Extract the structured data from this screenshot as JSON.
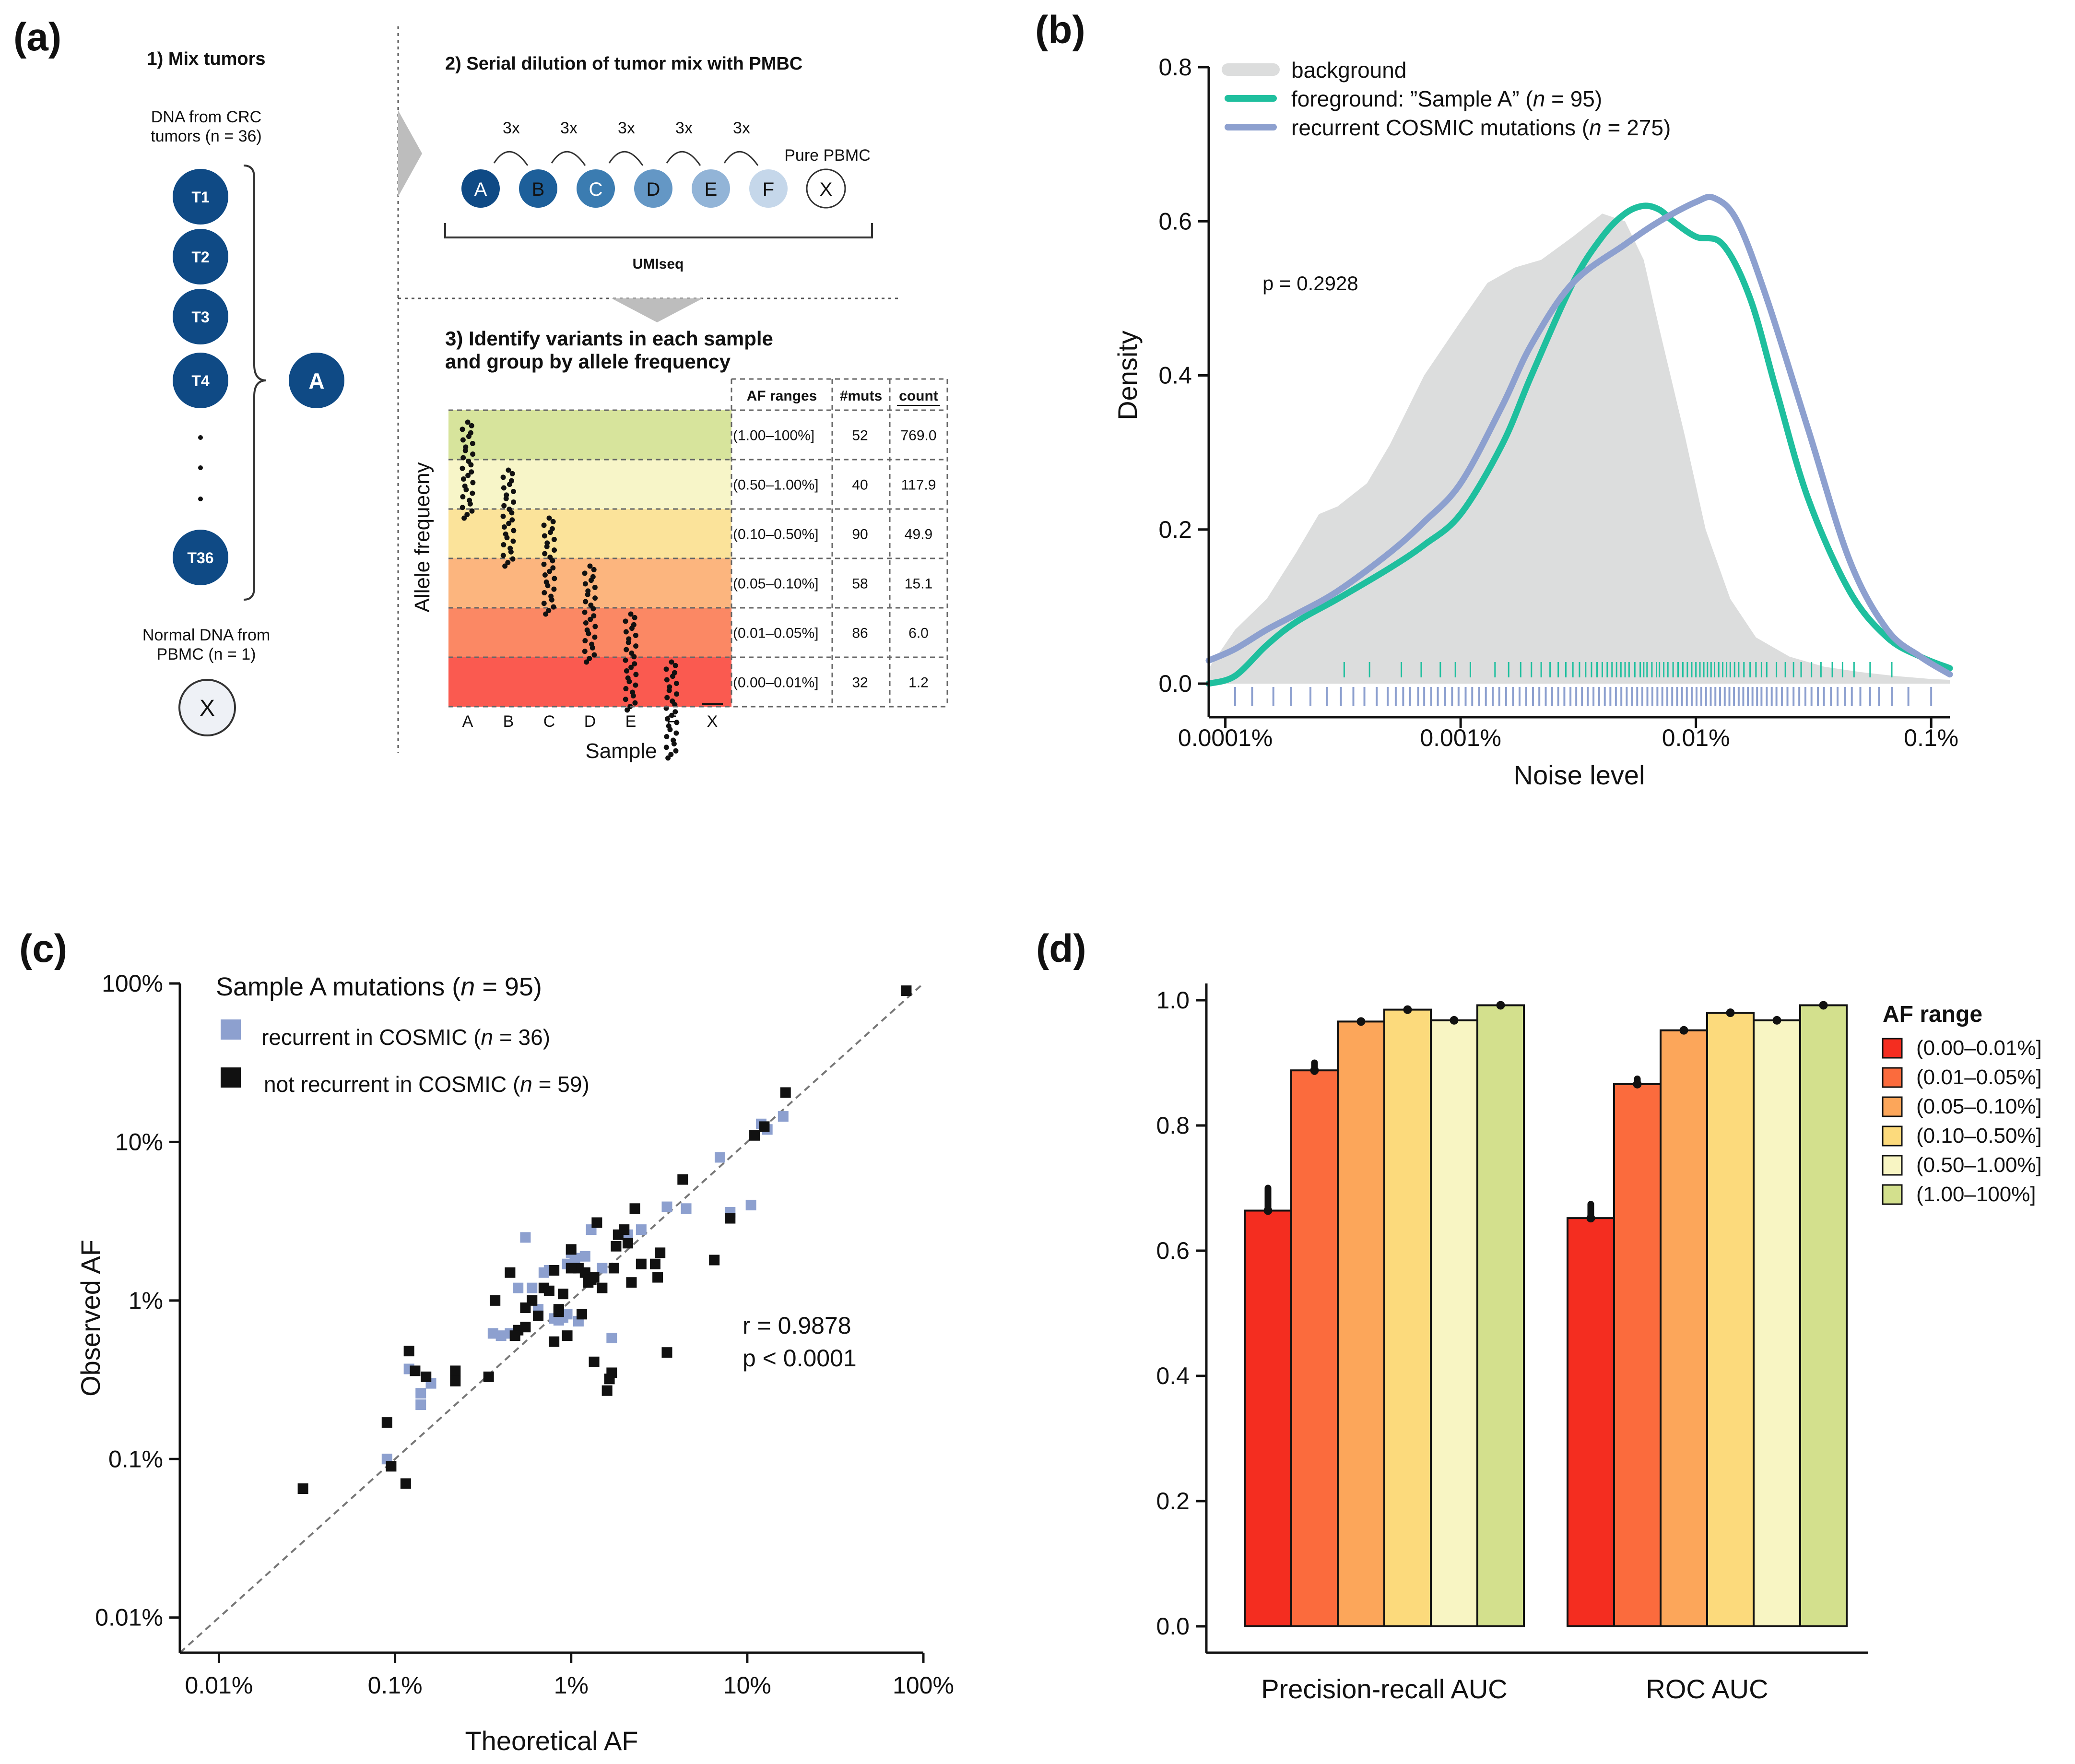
{
  "panel_a": {
    "letter": "(a)",
    "step1_title": "1) Mix tumors",
    "dna_from_line1": "DNA from CRC",
    "dna_from_line2": "tumors (n = 36)",
    "tumors": [
      "T1",
      "T2",
      "T3",
      "T4",
      "T36"
    ],
    "mix_label": "A",
    "normal_line1": "Normal DNA from",
    "normal_line2": "PBMC (n = 1)",
    "normal_label": "X",
    "step2_title": "2) Serial dilution of tumor mix with PMBC",
    "dilution_factors": [
      "3x",
      "3x",
      "3x",
      "3x",
      "3x"
    ],
    "pure_pbmc": "Pure PBMC",
    "samples": [
      "A",
      "B",
      "C",
      "D",
      "E",
      "F",
      "X"
    ],
    "umiseq_label": "UMIseq",
    "step3_title_line1": "3) Identify variants in each sample",
    "step3_title_line2": "and group by allele frequency",
    "y_axis_label": "Allele frequecny",
    "x_axis_label": "Sample",
    "table_headers": [
      "AF ranges",
      "#muts",
      "count"
    ],
    "table_rows": [
      {
        "range": "(1.00–100%]",
        "muts": "52",
        "count": "769.0",
        "color": "#d7e49c"
      },
      {
        "range": "(0.50–1.00%]",
        "muts": "40",
        "count": "117.9",
        "color": "#f7f5c8"
      },
      {
        "range": "(0.10–0.50%]",
        "muts": "90",
        "count": "49.9",
        "color": "#fbe39a"
      },
      {
        "range": "(0.05–0.10%]",
        "muts": "58",
        "count": "15.1",
        "color": "#fcb57e"
      },
      {
        "range": "(0.01–0.05%]",
        "muts": "86",
        "count": "6.0",
        "color": "#fb8864"
      },
      {
        "range": "(0.00–0.01%]",
        "muts": "32",
        "count": "1.2",
        "color": "#fa5a50"
      }
    ]
  },
  "panel_b": {
    "letter": "(b)",
    "pvalue": "p = 0.2928",
    "legend": {
      "background": "background",
      "foreground_prefix": "foreground: ”Sample A” (",
      "foreground_n": "n",
      "foreground_suffix": " = 95)",
      "cosmic_prefix": "recurrent COSMIC mutations (",
      "cosmic_n": "n",
      "cosmic_suffix": " = 275)"
    }
  },
  "panel_c": {
    "letter": "(c)",
    "legend_title_prefix": "Sample A mutations (",
    "legend_title_n": "n",
    "legend_title_suffix": " = 95)",
    "legend_blue_prefix": "recurrent in COSMIC (",
    "legend_blue_n": "n",
    "legend_blue_suffix": " = 36)",
    "legend_black_prefix": "not recurrent in COSMIC (",
    "legend_black_n": "n",
    "legend_black_suffix": " = 59)",
    "r_text": "r = 0.9878",
    "p_text": "p < 0.0001"
  },
  "panel_d": {
    "letter": "(d)",
    "legend_title": "AF range"
  },
  "chart_data": [
    {
      "id": "b",
      "type": "line",
      "xlabel": "Noise level",
      "ylabel": "Density",
      "x_scale": "log10",
      "x_ticks": [
        {
          "v": 0.0001,
          "label": "0.0001%"
        },
        {
          "v": 0.001,
          "label": "0.001%"
        },
        {
          "v": 0.01,
          "label": "0.01%"
        },
        {
          "v": 0.1,
          "label": "0.1%"
        }
      ],
      "xlim": [
        8.5e-05,
        0.12
      ],
      "ylim": [
        0,
        0.8
      ],
      "y_ticks": [
        0.0,
        0.2,
        0.4,
        0.6,
        0.8
      ],
      "series": [
        {
          "name": "background",
          "kind": "area",
          "color": "#dcdddd",
          "x": [
            8.5e-05,
            0.00011,
            0.00015,
            0.0002,
            0.00025,
            0.0003,
            0.0004,
            0.0005,
            0.0007,
            0.001,
            0.0013,
            0.0017,
            0.0022,
            0.003,
            0.004,
            0.005,
            0.006,
            0.007,
            0.009,
            0.011,
            0.014,
            0.018,
            0.025,
            0.035,
            0.05,
            0.07,
            0.1,
            0.12
          ],
          "y": [
            0.02,
            0.07,
            0.11,
            0.17,
            0.22,
            0.23,
            0.26,
            0.31,
            0.4,
            0.47,
            0.52,
            0.54,
            0.55,
            0.58,
            0.61,
            0.6,
            0.55,
            0.46,
            0.32,
            0.2,
            0.11,
            0.06,
            0.035,
            0.022,
            0.015,
            0.01,
            0.006,
            0.005
          ]
        },
        {
          "name": "foreground: ”Sample A” (n = 95)",
          "kind": "line",
          "color": "#1fbf9e",
          "x": [
            8.5e-05,
            0.00011,
            0.00015,
            0.0002,
            0.0003,
            0.0005,
            0.0007,
            0.001,
            0.0015,
            0.002,
            0.003,
            0.004,
            0.005,
            0.006,
            0.007,
            0.008,
            0.01,
            0.013,
            0.017,
            0.022,
            0.03,
            0.045,
            0.065,
            0.09,
            0.12
          ],
          "y": [
            0.0,
            0.01,
            0.05,
            0.08,
            0.11,
            0.15,
            0.18,
            0.22,
            0.31,
            0.4,
            0.52,
            0.58,
            0.61,
            0.62,
            0.615,
            0.6,
            0.58,
            0.57,
            0.5,
            0.38,
            0.24,
            0.12,
            0.06,
            0.035,
            0.02
          ]
        },
        {
          "name": "recurrent COSMIC mutations (n = 275)",
          "kind": "line",
          "color": "#8da0cf",
          "x": [
            8.5e-05,
            0.00011,
            0.00015,
            0.0002,
            0.0003,
            0.0005,
            0.0007,
            0.001,
            0.0015,
            0.002,
            0.003,
            0.005,
            0.007,
            0.01,
            0.012,
            0.015,
            0.02,
            0.03,
            0.045,
            0.065,
            0.09,
            0.12
          ],
          "y": [
            0.03,
            0.045,
            0.07,
            0.09,
            0.12,
            0.17,
            0.21,
            0.26,
            0.36,
            0.44,
            0.52,
            0.57,
            0.6,
            0.625,
            0.63,
            0.6,
            0.5,
            0.33,
            0.16,
            0.07,
            0.035,
            0.012
          ]
        }
      ],
      "rug_foreground": [
        0.00032,
        0.00041,
        0.00056,
        0.00068,
        0.00082,
        0.00095,
        0.0011,
        0.0014,
        0.0016,
        0.0018,
        0.002,
        0.0022,
        0.0024,
        0.0026,
        0.0028,
        0.003,
        0.0032,
        0.0034,
        0.0036,
        0.0038,
        0.004,
        0.0042,
        0.0044,
        0.0046,
        0.0048,
        0.005,
        0.0052,
        0.0055,
        0.0058,
        0.006,
        0.0062,
        0.0065,
        0.0068,
        0.007,
        0.0073,
        0.0076,
        0.008,
        0.0084,
        0.0088,
        0.0092,
        0.0096,
        0.01,
        0.0104,
        0.0108,
        0.0112,
        0.0116,
        0.012,
        0.0125,
        0.013,
        0.0135,
        0.014,
        0.0146,
        0.0152,
        0.016,
        0.017,
        0.018,
        0.019,
        0.02,
        0.022,
        0.024,
        0.026,
        0.028,
        0.031,
        0.034,
        0.038,
        0.042,
        0.047,
        0.055,
        0.068
      ],
      "rug_cosmic": [
        0.00011,
        0.00013,
        0.00016,
        0.00019,
        0.00023,
        0.00027,
        0.00031,
        0.00035,
        0.00039,
        0.00044,
        0.00049,
        0.00053,
        0.00057,
        0.00061,
        0.00066,
        0.0007,
        0.00075,
        0.0008,
        0.00086,
        0.00092,
        0.00098,
        0.00105,
        0.00112,
        0.0012,
        0.00128,
        0.00137,
        0.00146,
        0.00156,
        0.00167,
        0.00178,
        0.0019,
        0.00203,
        0.00216,
        0.0023,
        0.00245,
        0.0026,
        0.00276,
        0.00293,
        0.0031,
        0.00328,
        0.00347,
        0.00367,
        0.00388,
        0.0041,
        0.00433,
        0.00457,
        0.00482,
        0.00508,
        0.00535,
        0.00563,
        0.00592,
        0.00622,
        0.00653,
        0.00686,
        0.0072,
        0.00756,
        0.00793,
        0.00832,
        0.00873,
        0.00915,
        0.0096,
        0.01006,
        0.01054,
        0.01104,
        0.01156,
        0.0121,
        0.01267,
        0.01326,
        0.01388,
        0.01452,
        0.0152,
        0.0159,
        0.01664,
        0.0174,
        0.0182,
        0.019,
        0.02,
        0.021,
        0.022,
        0.0232,
        0.0245,
        0.026,
        0.0275,
        0.0292,
        0.031,
        0.033,
        0.035,
        0.0375,
        0.04,
        0.043,
        0.046,
        0.05,
        0.055,
        0.06,
        0.068,
        0.08,
        0.1
      ]
    },
    {
      "id": "c",
      "type": "scatter",
      "xlabel": "Theoretical AF",
      "ylabel": "Observed AF",
      "x_scale": "log10",
      "y_scale": "log10",
      "xlim": [
        0.006,
        100
      ],
      "ylim": [
        0.006,
        100
      ],
      "x_ticks": [
        {
          "v": 0.01,
          "label": "0.01%"
        },
        {
          "v": 0.1,
          "label": "0.1%"
        },
        {
          "v": 1,
          "label": "1%"
        },
        {
          "v": 10,
          "label": "10%"
        },
        {
          "v": 100,
          "label": "100%"
        }
      ],
      "y_ticks": [
        {
          "v": 0.01,
          "label": "0.01%"
        },
        {
          "v": 0.1,
          "label": "0.1%"
        },
        {
          "v": 1,
          "label": "1%"
        },
        {
          "v": 10,
          "label": "10%"
        },
        {
          "v": 100,
          "label": "100%"
        }
      ],
      "series": [
        {
          "name": "recurrent in COSMIC",
          "color": "#8da0cf",
          "points": [
            [
              0.09,
              0.1
            ],
            [
              0.12,
              0.37
            ],
            [
              0.14,
              0.22
            ],
            [
              0.14,
              0.26
            ],
            [
              0.16,
              0.3
            ],
            [
              0.36,
              0.62
            ],
            [
              0.4,
              0.6
            ],
            [
              0.45,
              0.62
            ],
            [
              0.5,
              1.2
            ],
            [
              0.55,
              2.5
            ],
            [
              0.6,
              1.2
            ],
            [
              0.65,
              0.88
            ],
            [
              0.7,
              1.5
            ],
            [
              0.75,
              1.55
            ],
            [
              0.8,
              0.77
            ],
            [
              0.85,
              0.75
            ],
            [
              0.9,
              0.78
            ],
            [
              0.95,
              1.7
            ],
            [
              1.0,
              2.0
            ],
            [
              1.05,
              1.85
            ],
            [
              1.1,
              0.74
            ],
            [
              1.2,
              1.9
            ],
            [
              1.3,
              2.8
            ],
            [
              1.5,
              1.6
            ],
            [
              1.7,
              0.58
            ],
            [
              2.1,
              2.6
            ],
            [
              2.5,
              2.8
            ],
            [
              3.5,
              3.9
            ],
            [
              4.5,
              3.8
            ],
            [
              7.0,
              8.0
            ],
            [
              8.0,
              3.6
            ],
            [
              10.5,
              4.0
            ],
            [
              12.0,
              13.0
            ],
            [
              16.0,
              14.5
            ],
            [
              13.0,
              12.0
            ],
            [
              0.95,
              0.82
            ]
          ]
        },
        {
          "name": "not recurrent in COSMIC",
          "color": "#111111",
          "points": [
            [
              0.03,
              0.065
            ],
            [
              0.09,
              0.17
            ],
            [
              0.095,
              0.09
            ],
            [
              0.115,
              0.07
            ],
            [
              0.12,
              0.48
            ],
            [
              0.13,
              0.36
            ],
            [
              0.15,
              0.33
            ],
            [
              0.22,
              0.36
            ],
            [
              0.22,
              0.31
            ],
            [
              0.34,
              0.33
            ],
            [
              0.37,
              1.0
            ],
            [
              0.45,
              1.5
            ],
            [
              0.5,
              0.65
            ],
            [
              0.55,
              0.68
            ],
            [
              0.6,
              1.0
            ],
            [
              0.65,
              0.8
            ],
            [
              0.7,
              1.2
            ],
            [
              0.75,
              1.15
            ],
            [
              0.8,
              0.55
            ],
            [
              0.85,
              0.85
            ],
            [
              0.85,
              0.88
            ],
            [
              0.95,
              0.6
            ],
            [
              1.0,
              2.1
            ],
            [
              1.1,
              1.6
            ],
            [
              1.2,
              1.5
            ],
            [
              1.25,
              1.3
            ],
            [
              1.3,
              1.35
            ],
            [
              1.35,
              1.4
            ],
            [
              1.35,
              0.41
            ],
            [
              1.4,
              3.1
            ],
            [
              1.5,
              1.2
            ],
            [
              1.6,
              0.27
            ],
            [
              1.65,
              0.32
            ],
            [
              1.7,
              0.35
            ],
            [
              1.75,
              1.6
            ],
            [
              1.8,
              2.2
            ],
            [
              1.85,
              2.6
            ],
            [
              2.0,
              2.8
            ],
            [
              2.2,
              1.3
            ],
            [
              2.3,
              3.8
            ],
            [
              2.5,
              1.7
            ],
            [
              3.0,
              1.7
            ],
            [
              3.1,
              1.4
            ],
            [
              3.2,
              2.0
            ],
            [
              3.5,
              0.47
            ],
            [
              4.3,
              5.8
            ],
            [
              6.5,
              1.8
            ],
            [
              8.0,
              3.3
            ],
            [
              11.0,
              11.0
            ],
            [
              12.5,
              12.5
            ],
            [
              16.5,
              20.5
            ],
            [
              80.0,
              90.0
            ],
            [
              0.8,
              1.55
            ],
            [
              0.55,
              0.9
            ],
            [
              1.15,
              0.82
            ],
            [
              2.1,
              2.3
            ],
            [
              0.48,
              0.6
            ],
            [
              0.9,
              1.1
            ],
            [
              1.0,
              1.6
            ]
          ]
        }
      ]
    },
    {
      "id": "d",
      "type": "bar",
      "ylim": [
        0,
        1.0
      ],
      "y_ticks": [
        0.0,
        0.2,
        0.4,
        0.6,
        0.8,
        1.0
      ],
      "categories": [
        "Precision-recall AUC",
        "ROC AUC"
      ],
      "series": [
        {
          "name": "(0.00–0.01%]",
          "color": "#f42d20",
          "values": [
            0.664,
            0.652
          ]
        },
        {
          "name": "(0.01–0.05%]",
          "color": "#fb6b3d",
          "values": [
            0.888,
            0.866
          ]
        },
        {
          "name": "(0.05–0.10%]",
          "color": "#fca65a",
          "values": [
            0.966,
            0.952
          ]
        },
        {
          "name": "(0.10–0.50%]",
          "color": "#fcda7c",
          "values": [
            0.985,
            0.98
          ]
        },
        {
          "name": "(0.50–1.00%]",
          "color": "#f8f5c3",
          "values": [
            0.968,
            0.968
          ]
        },
        {
          "name": "(1.00–100%]",
          "color": "#d3e08d",
          "values": [
            0.992,
            0.992
          ]
        }
      ],
      "point_spread": [
        [
          0.663,
          0.7
        ],
        [
          0.886,
          0.9
        ],
        [
          0.966,
          0.966
        ],
        [
          0.985,
          0.985
        ],
        [
          0.968,
          0.968
        ],
        [
          0.992,
          0.992
        ]
      ]
    }
  ]
}
